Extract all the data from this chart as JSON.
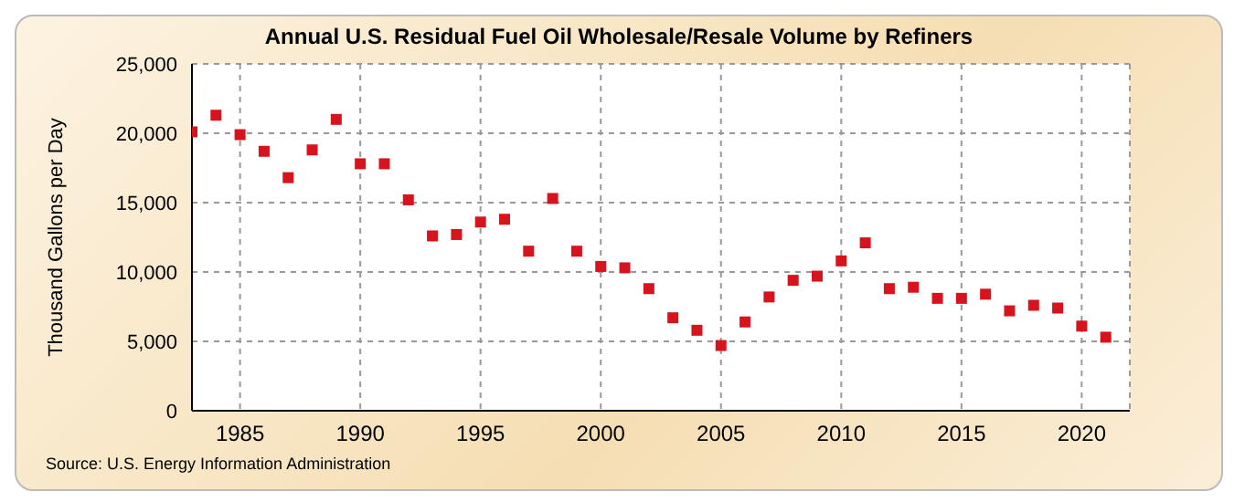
{
  "chart_data": {
    "type": "scatter",
    "title": "Annual U.S. Residual Fuel Oil Wholesale/Resale Volume by Refiners",
    "ylabel": "Thousand Gallons per Day",
    "x": [
      1983,
      1984,
      1985,
      1986,
      1987,
      1988,
      1989,
      1990,
      1991,
      1992,
      1993,
      1994,
      1995,
      1996,
      1997,
      1998,
      1999,
      2000,
      2001,
      2002,
      2003,
      2004,
      2005,
      2006,
      2007,
      2008,
      2009,
      2010,
      2011,
      2012,
      2013,
      2014,
      2015,
      2016,
      2017,
      2018,
      2019,
      2020,
      2021
    ],
    "series": [
      {
        "color": "#d7141e",
        "values": [
          20100,
          21300,
          19900,
          18700,
          16800,
          18800,
          21000,
          17800,
          17800,
          15200,
          12600,
          12700,
          13600,
          13800,
          11500,
          15300,
          11500,
          10400,
          10300,
          8800,
          6700,
          5800,
          4700,
          6400,
          8200,
          9400,
          9700,
          10800,
          12100,
          8800,
          8900,
          8100,
          8100,
          8400,
          7200,
          7600,
          7400,
          6100,
          5300
        ]
      }
    ],
    "xlim": [
      1983,
      2022
    ],
    "xticks": [
      1985,
      1990,
      1995,
      2000,
      2005,
      2010,
      2015,
      2020
    ],
    "ylim": [
      0,
      25000
    ],
    "yticks": [
      {
        "value": 0,
        "label": "0"
      },
      {
        "value": 5000,
        "label": "5,000"
      },
      {
        "value": 10000,
        "label": "10,000"
      },
      {
        "value": 15000,
        "label": "15,000"
      },
      {
        "value": 20000,
        "label": "20,000"
      },
      {
        "value": 25000,
        "label": "25,000"
      }
    ],
    "grid": true,
    "marker": "square",
    "legend": false,
    "annotations": [
      "Source: U.S. Energy Information Administration"
    ]
  }
}
